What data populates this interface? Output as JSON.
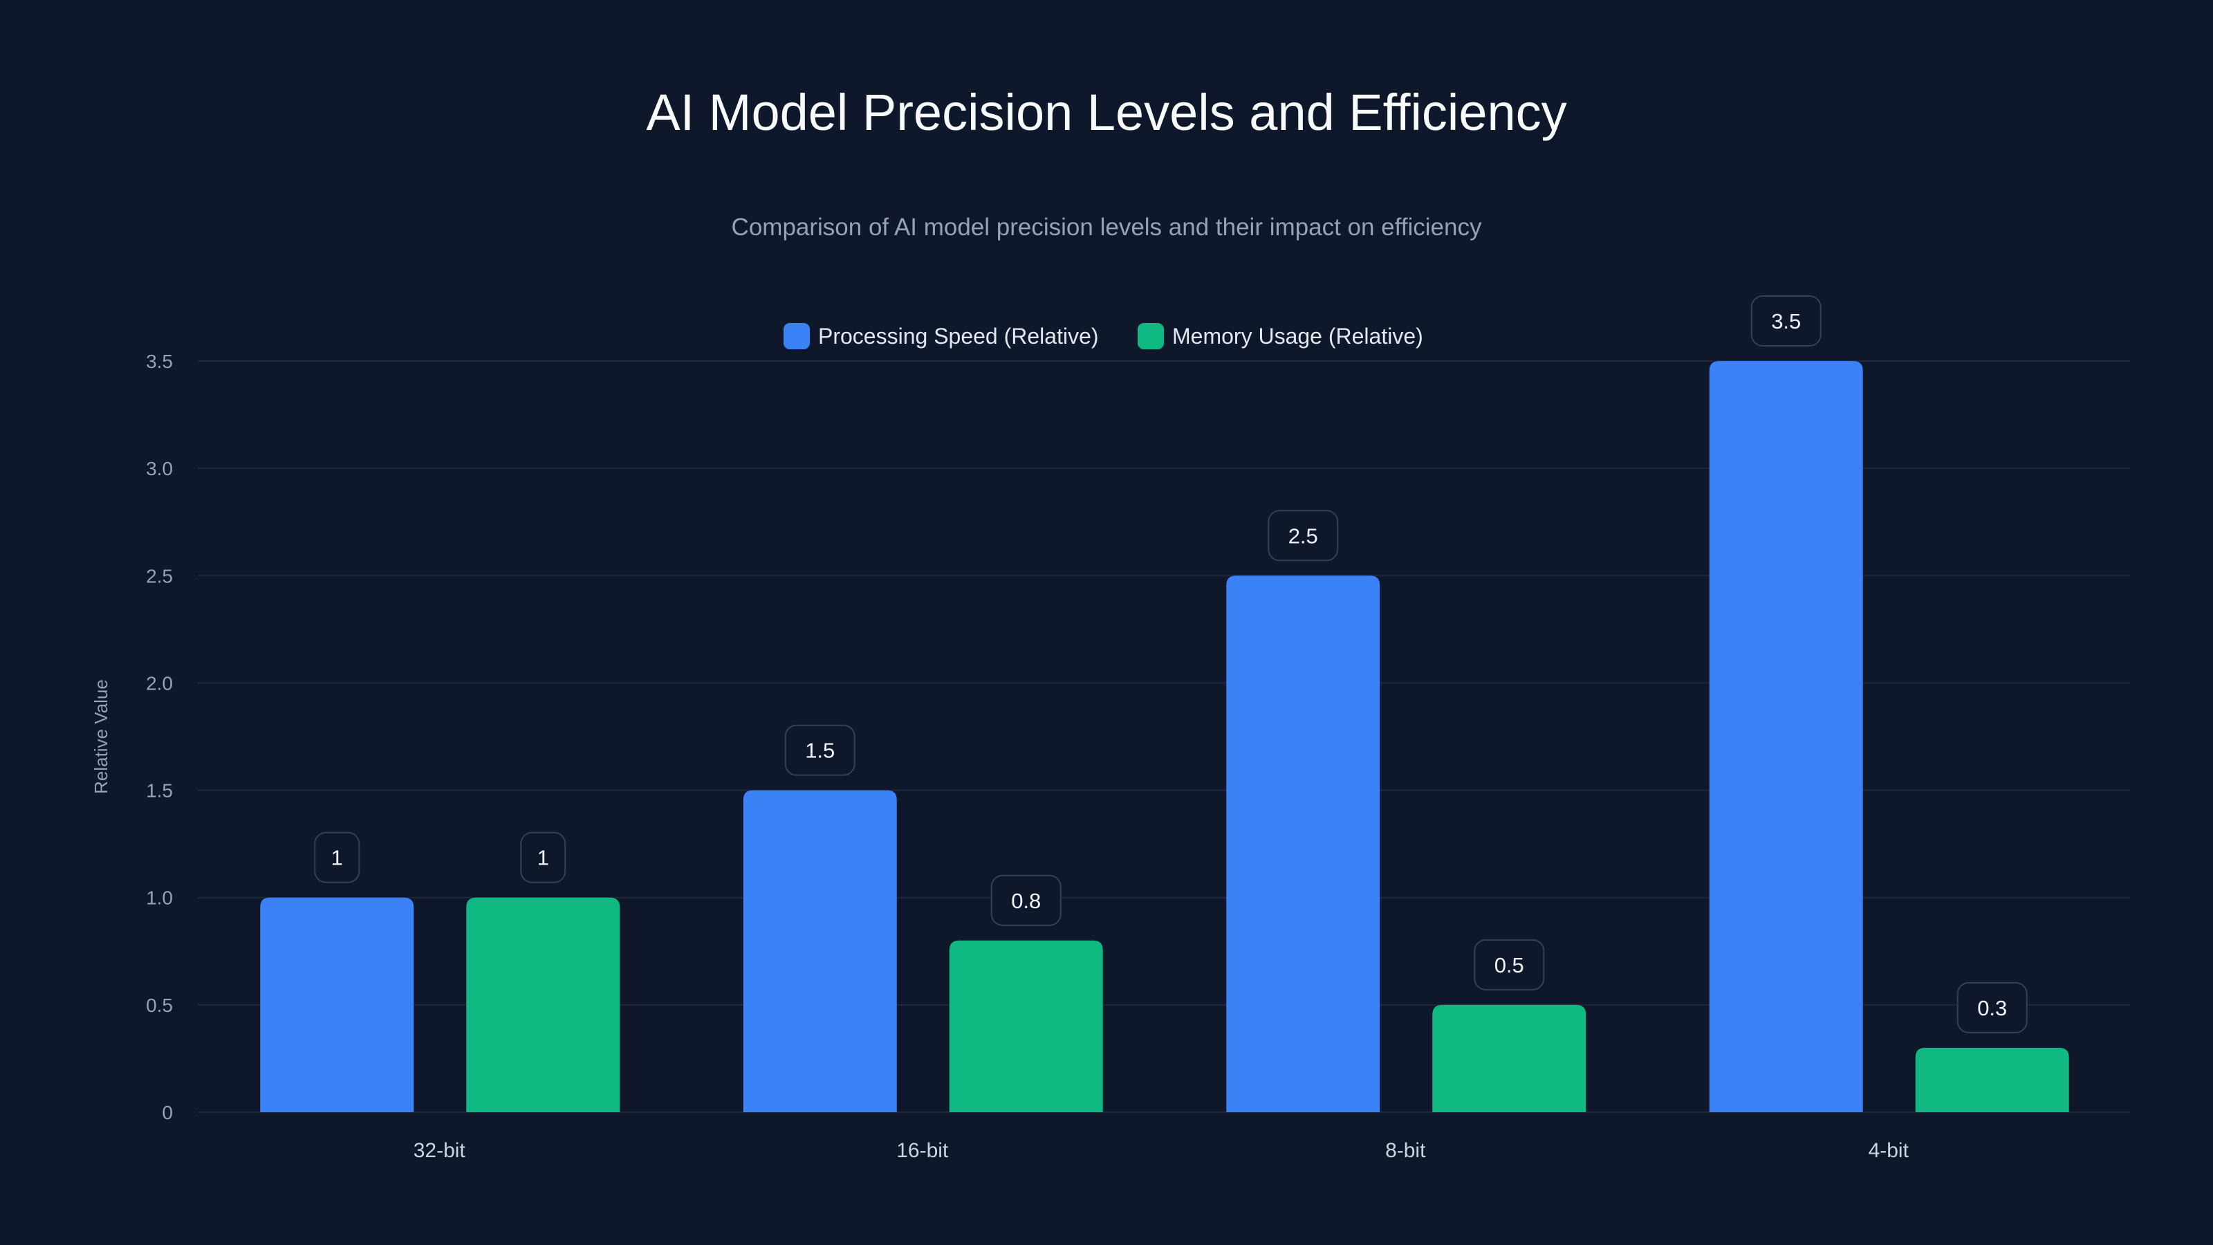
{
  "chart_data": {
    "type": "bar",
    "title": "AI Model Precision Levels and Efficiency",
    "subtitle": "Comparison of AI model precision levels and their impact on efficiency",
    "xlabel": "",
    "ylabel": "Relative Value",
    "ylim": [
      0,
      3.5
    ],
    "yticks": [
      0,
      0.5,
      1.0,
      1.5,
      2.0,
      2.5,
      3.0,
      3.5
    ],
    "ytick_labels": [
      "0",
      "0.5",
      "1.0",
      "1.5",
      "2.0",
      "2.5",
      "3.0",
      "3.5"
    ],
    "grid": true,
    "legend_position": "top-center",
    "categories": [
      "32-bit",
      "16-bit",
      "8-bit",
      "4-bit"
    ],
    "series": [
      {
        "name": "Processing Speed (Relative)",
        "color": "#3b82f6",
        "values": [
          1,
          1.5,
          2.5,
          3.5
        ],
        "labels": [
          "1",
          "1.5",
          "2.5",
          "3.5"
        ]
      },
      {
        "name": "Memory Usage (Relative)",
        "color": "#10b981",
        "values": [
          1,
          0.8,
          0.5,
          0.3
        ],
        "labels": [
          "1",
          "0.8",
          "0.5",
          "0.3"
        ]
      }
    ]
  }
}
